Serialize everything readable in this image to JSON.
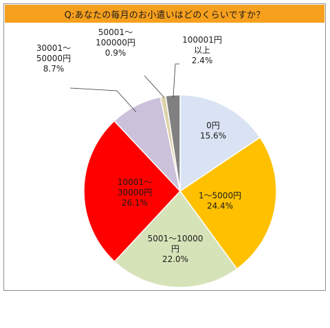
{
  "chart_data": {
    "type": "pie",
    "title": "Q:あなたの毎月のお小遣いはどのくらいですか？",
    "slices": [
      {
        "label": [
          "0円"
        ],
        "value": 15.6,
        "value_label": "15.6%",
        "color": "#dae3f3"
      },
      {
        "label": [
          "1〜5000円"
        ],
        "value": 24.4,
        "value_label": "24.4%",
        "color": "#ffc000"
      },
      {
        "label": [
          "5001〜10000",
          "円"
        ],
        "value": 22.0,
        "value_label": "22.0%",
        "color": "#d6e2b8"
      },
      {
        "label": [
          "10001〜",
          "30000円"
        ],
        "value": 26.1,
        "value_label": "26.1%",
        "color": "#ff0000"
      },
      {
        "label": [
          "30001〜",
          "50000円"
        ],
        "value": 8.7,
        "value_label": "8.7%",
        "color": "#ccc1da"
      },
      {
        "label": [
          "50001〜",
          "100000円"
        ],
        "value": 0.9,
        "value_label": "0.9%",
        "color": "#ddd2a8"
      },
      {
        "label": [
          "100001円",
          "以上"
        ],
        "value": 2.4,
        "value_label": "2.4%",
        "color": "#808080"
      }
    ]
  }
}
